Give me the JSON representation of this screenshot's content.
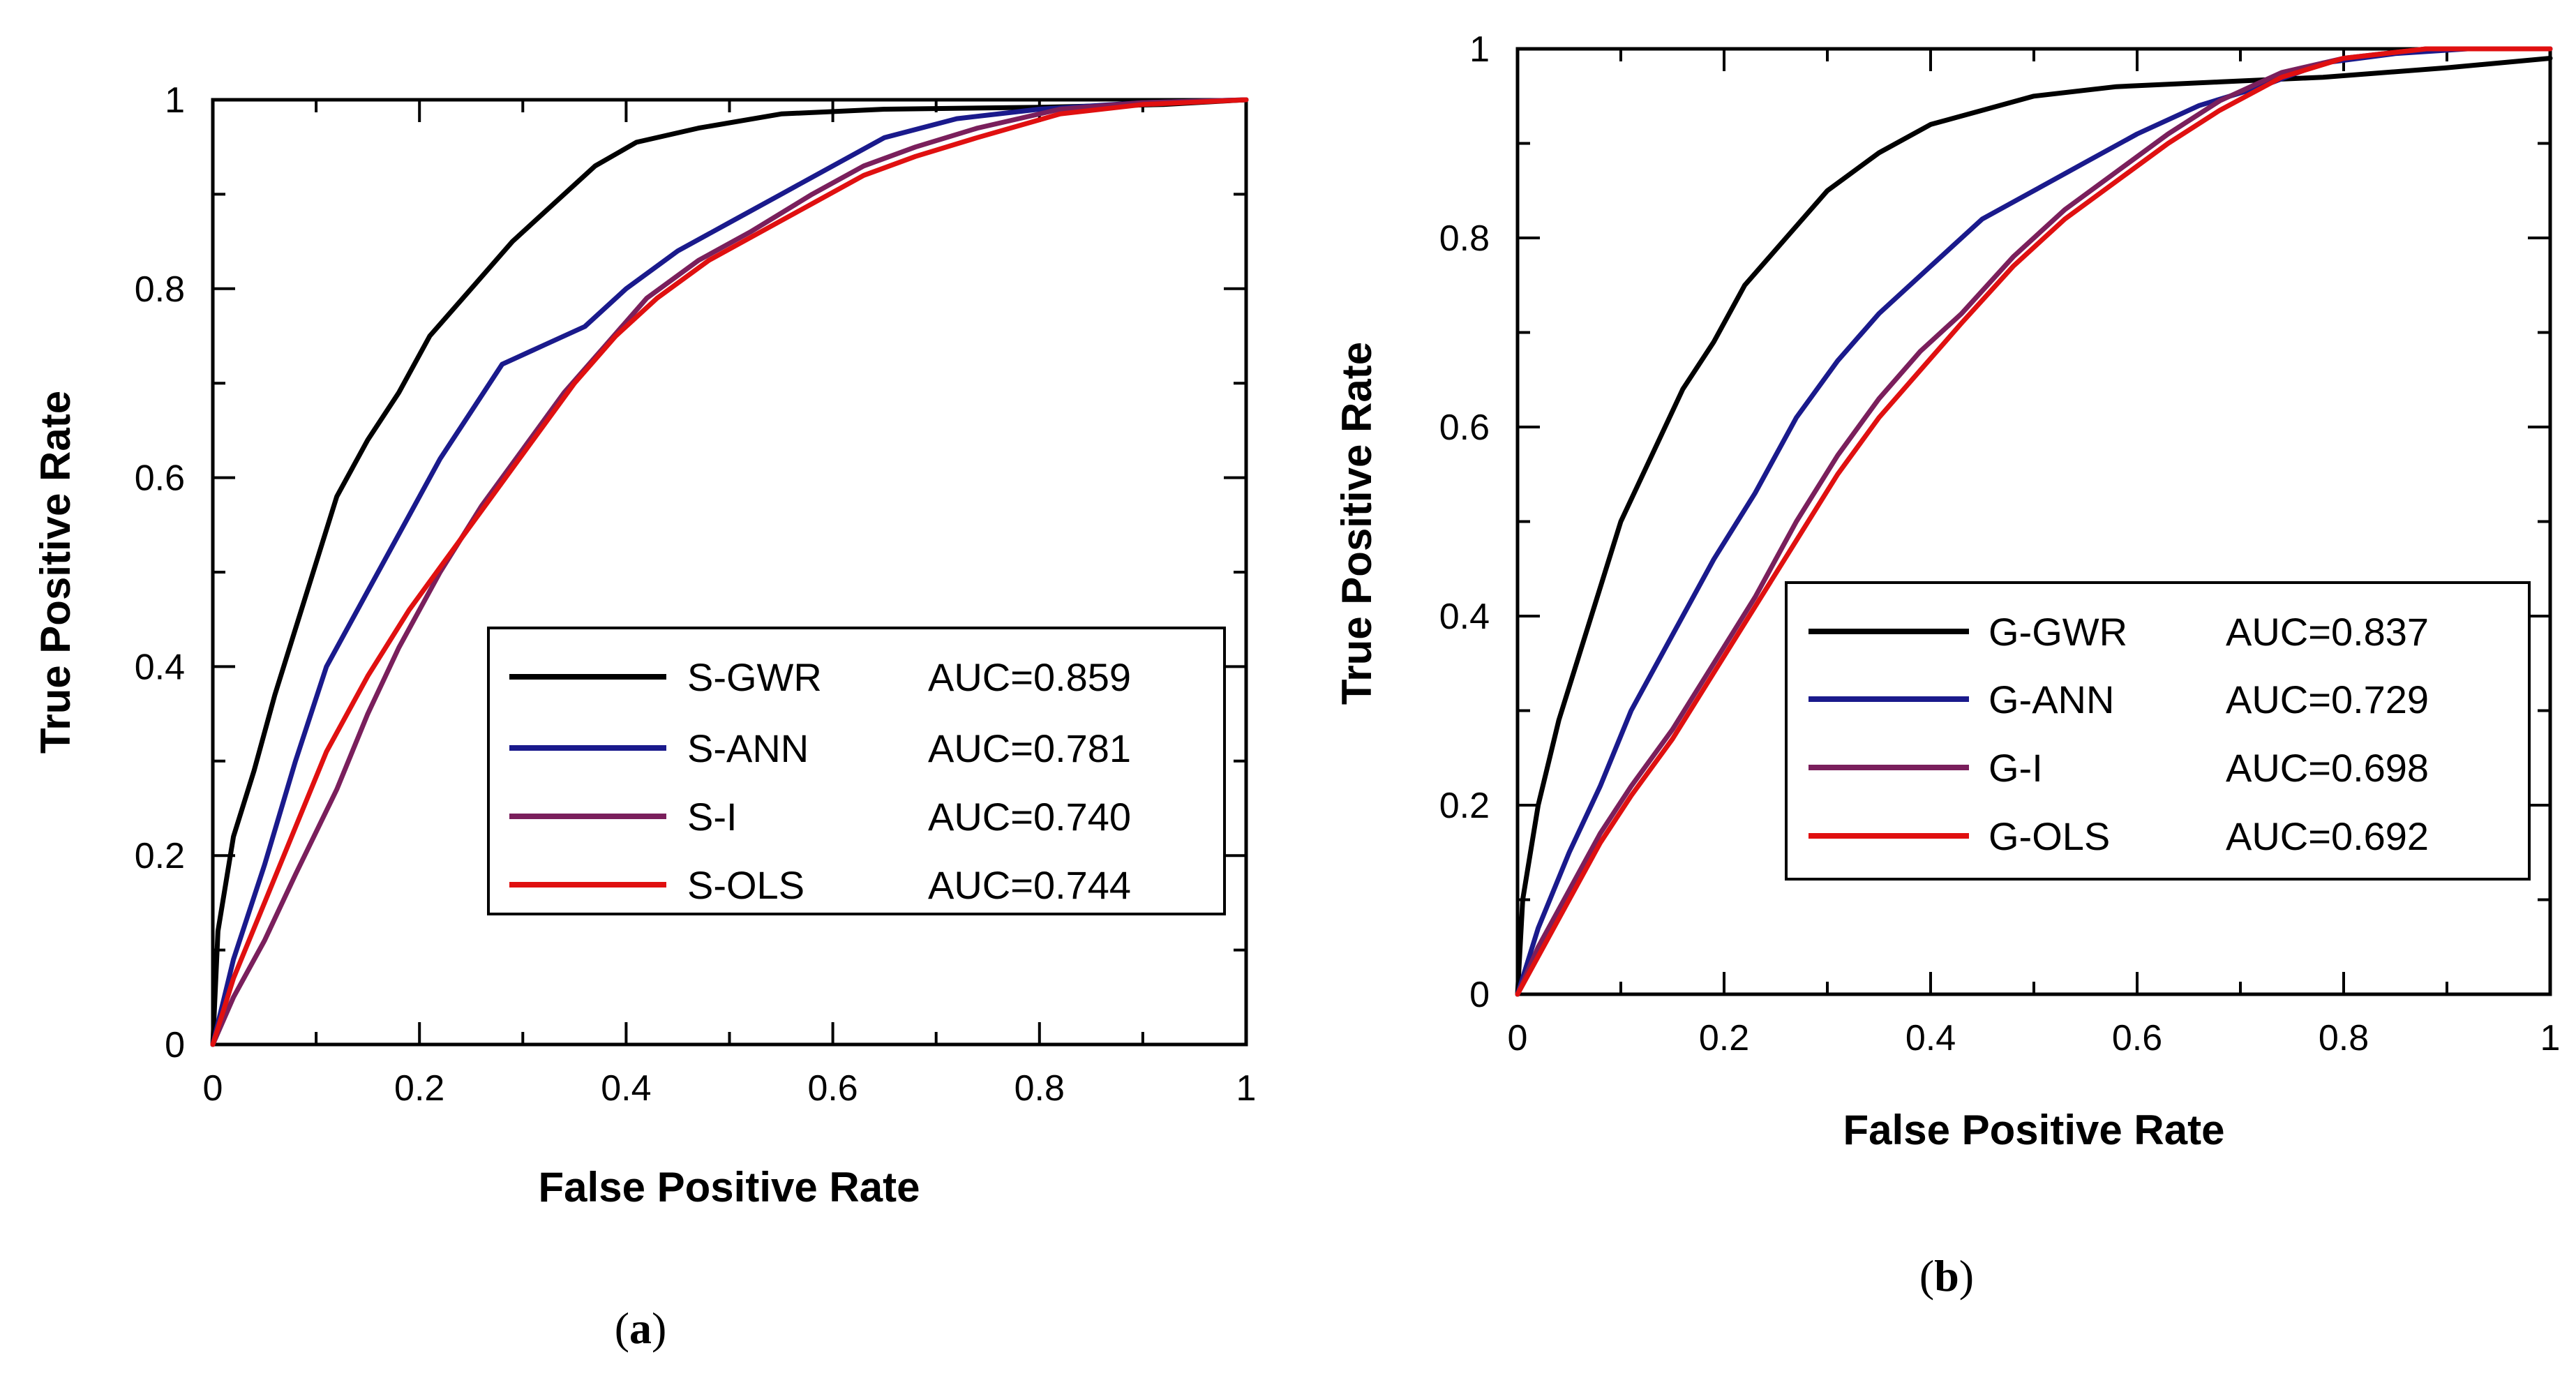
{
  "chart_data": [
    {
      "type": "line",
      "panel_label": "a",
      "xlabel": "False Positive Rate",
      "ylabel": "True Positive Rate",
      "xlim": [
        0,
        1
      ],
      "ylim": [
        0,
        1
      ],
      "x_ticks": [
        "0",
        "0.2",
        "0.4",
        "0.6",
        "0.8",
        "1"
      ],
      "y_ticks": [
        "0",
        "0.2",
        "0.4",
        "0.6",
        "0.8",
        "1"
      ],
      "grid": false,
      "legend_position": "lower-right",
      "series": [
        {
          "name": "S-GWR",
          "auc": "AUC=0.859",
          "color": "#000000",
          "points": [
            [
              0,
              0
            ],
            [
              0.005,
              0.12
            ],
            [
              0.02,
              0.22
            ],
            [
              0.04,
              0.29
            ],
            [
              0.06,
              0.37
            ],
            [
              0.08,
              0.44
            ],
            [
              0.1,
              0.51
            ],
            [
              0.12,
              0.58
            ],
            [
              0.15,
              0.64
            ],
            [
              0.18,
              0.69
            ],
            [
              0.21,
              0.75
            ],
            [
              0.25,
              0.8
            ],
            [
              0.29,
              0.85
            ],
            [
              0.33,
              0.89
            ],
            [
              0.37,
              0.93
            ],
            [
              0.41,
              0.955
            ],
            [
              0.47,
              0.97
            ],
            [
              0.55,
              0.985
            ],
            [
              0.65,
              0.99
            ],
            [
              0.8,
              0.992
            ],
            [
              0.92,
              0.995
            ],
            [
              1,
              1
            ]
          ]
        },
        {
          "name": "S-ANN",
          "auc": "AUC=0.781",
          "color": "#1a1a8c",
          "points": [
            [
              0,
              0
            ],
            [
              0.02,
              0.09
            ],
            [
              0.05,
              0.19
            ],
            [
              0.08,
              0.3
            ],
            [
              0.11,
              0.4
            ],
            [
              0.15,
              0.48
            ],
            [
              0.19,
              0.56
            ],
            [
              0.22,
              0.62
            ],
            [
              0.25,
              0.67
            ],
            [
              0.28,
              0.72
            ],
            [
              0.32,
              0.74
            ],
            [
              0.36,
              0.76
            ],
            [
              0.4,
              0.8
            ],
            [
              0.45,
              0.84
            ],
            [
              0.5,
              0.87
            ],
            [
              0.55,
              0.9
            ],
            [
              0.6,
              0.93
            ],
            [
              0.65,
              0.96
            ],
            [
              0.72,
              0.98
            ],
            [
              0.8,
              0.99
            ],
            [
              0.9,
              0.997
            ],
            [
              1,
              1
            ]
          ]
        },
        {
          "name": "S-I",
          "auc": "AUC=0.740",
          "color": "#7a1f5c",
          "points": [
            [
              0,
              0
            ],
            [
              0.02,
              0.05
            ],
            [
              0.05,
              0.11
            ],
            [
              0.08,
              0.18
            ],
            [
              0.12,
              0.27
            ],
            [
              0.15,
              0.35
            ],
            [
              0.18,
              0.42
            ],
            [
              0.22,
              0.5
            ],
            [
              0.26,
              0.57
            ],
            [
              0.3,
              0.63
            ],
            [
              0.34,
              0.69
            ],
            [
              0.38,
              0.74
            ],
            [
              0.42,
              0.79
            ],
            [
              0.47,
              0.83
            ],
            [
              0.52,
              0.86
            ],
            [
              0.58,
              0.9
            ],
            [
              0.63,
              0.93
            ],
            [
              0.68,
              0.95
            ],
            [
              0.74,
              0.97
            ],
            [
              0.82,
              0.99
            ],
            [
              0.9,
              0.997
            ],
            [
              1,
              1
            ]
          ]
        },
        {
          "name": "S-OLS",
          "auc": "AUC=0.744",
          "color": "#e01010",
          "points": [
            [
              0,
              0
            ],
            [
              0.02,
              0.07
            ],
            [
              0.05,
              0.15
            ],
            [
              0.08,
              0.23
            ],
            [
              0.11,
              0.31
            ],
            [
              0.15,
              0.39
            ],
            [
              0.19,
              0.46
            ],
            [
              0.23,
              0.52
            ],
            [
              0.27,
              0.58
            ],
            [
              0.31,
              0.64
            ],
            [
              0.35,
              0.7
            ],
            [
              0.39,
              0.75
            ],
            [
              0.43,
              0.79
            ],
            [
              0.48,
              0.83
            ],
            [
              0.53,
              0.86
            ],
            [
              0.58,
              0.89
            ],
            [
              0.63,
              0.92
            ],
            [
              0.68,
              0.94
            ],
            [
              0.74,
              0.96
            ],
            [
              0.82,
              0.985
            ],
            [
              0.9,
              0.995
            ],
            [
              1,
              1
            ]
          ]
        }
      ]
    },
    {
      "type": "line",
      "panel_label": "b",
      "xlabel": "False Positive Rate",
      "ylabel": "True Positive Rate",
      "xlim": [
        0,
        1
      ],
      "ylim": [
        0,
        1
      ],
      "x_ticks": [
        "0",
        "0.2",
        "0.4",
        "0.6",
        "0.8",
        "1"
      ],
      "y_ticks": [
        "0",
        "0.2",
        "0.4",
        "0.6",
        "0.8",
        "1"
      ],
      "grid": false,
      "legend_position": "lower-right",
      "series": [
        {
          "name": "G-GWR",
          "auc": "AUC=0.837",
          "color": "#000000",
          "points": [
            [
              0,
              0
            ],
            [
              0.005,
              0.1
            ],
            [
              0.02,
              0.2
            ],
            [
              0.04,
              0.29
            ],
            [
              0.06,
              0.36
            ],
            [
              0.08,
              0.43
            ],
            [
              0.1,
              0.5
            ],
            [
              0.13,
              0.57
            ],
            [
              0.16,
              0.64
            ],
            [
              0.19,
              0.69
            ],
            [
              0.22,
              0.75
            ],
            [
              0.26,
              0.8
            ],
            [
              0.3,
              0.85
            ],
            [
              0.35,
              0.89
            ],
            [
              0.4,
              0.92
            ],
            [
              0.45,
              0.935
            ],
            [
              0.5,
              0.95
            ],
            [
              0.58,
              0.96
            ],
            [
              0.68,
              0.965
            ],
            [
              0.78,
              0.97
            ],
            [
              0.9,
              0.98
            ],
            [
              1,
              0.99
            ]
          ]
        },
        {
          "name": "G-ANN",
          "auc": "AUC=0.729",
          "color": "#1a1a8c",
          "points": [
            [
              0,
              0
            ],
            [
              0.02,
              0.07
            ],
            [
              0.05,
              0.15
            ],
            [
              0.08,
              0.22
            ],
            [
              0.11,
              0.3
            ],
            [
              0.15,
              0.38
            ],
            [
              0.19,
              0.46
            ],
            [
              0.23,
              0.53
            ],
            [
              0.27,
              0.61
            ],
            [
              0.31,
              0.67
            ],
            [
              0.35,
              0.72
            ],
            [
              0.4,
              0.77
            ],
            [
              0.45,
              0.82
            ],
            [
              0.5,
              0.85
            ],
            [
              0.55,
              0.88
            ],
            [
              0.6,
              0.91
            ],
            [
              0.66,
              0.94
            ],
            [
              0.72,
              0.96
            ],
            [
              0.78,
              0.985
            ],
            [
              0.85,
              0.995
            ],
            [
              0.92,
              1
            ],
            [
              1,
              1
            ]
          ]
        },
        {
          "name": "G-I",
          "auc": "AUC=0.698",
          "color": "#7a1f5c",
          "points": [
            [
              0,
              0
            ],
            [
              0.02,
              0.05
            ],
            [
              0.05,
              0.11
            ],
            [
              0.08,
              0.17
            ],
            [
              0.11,
              0.22
            ],
            [
              0.15,
              0.28
            ],
            [
              0.19,
              0.35
            ],
            [
              0.23,
              0.42
            ],
            [
              0.27,
              0.5
            ],
            [
              0.31,
              0.57
            ],
            [
              0.35,
              0.63
            ],
            [
              0.39,
              0.68
            ],
            [
              0.43,
              0.72
            ],
            [
              0.48,
              0.78
            ],
            [
              0.53,
              0.83
            ],
            [
              0.58,
              0.87
            ],
            [
              0.63,
              0.91
            ],
            [
              0.68,
              0.945
            ],
            [
              0.74,
              0.975
            ],
            [
              0.8,
              0.99
            ],
            [
              0.88,
              1
            ],
            [
              1,
              1
            ]
          ]
        },
        {
          "name": "G-OLS",
          "auc": "AUC=0.692",
          "color": "#e01010",
          "points": [
            [
              0,
              0
            ],
            [
              0.02,
              0.04
            ],
            [
              0.05,
              0.1
            ],
            [
              0.08,
              0.16
            ],
            [
              0.11,
              0.21
            ],
            [
              0.15,
              0.27
            ],
            [
              0.19,
              0.34
            ],
            [
              0.23,
              0.41
            ],
            [
              0.27,
              0.48
            ],
            [
              0.31,
              0.55
            ],
            [
              0.35,
              0.61
            ],
            [
              0.39,
              0.66
            ],
            [
              0.43,
              0.71
            ],
            [
              0.48,
              0.77
            ],
            [
              0.53,
              0.82
            ],
            [
              0.58,
              0.86
            ],
            [
              0.63,
              0.9
            ],
            [
              0.68,
              0.935
            ],
            [
              0.74,
              0.97
            ],
            [
              0.8,
              0.99
            ],
            [
              0.88,
              1
            ],
            [
              1,
              1
            ]
          ]
        }
      ]
    }
  ]
}
